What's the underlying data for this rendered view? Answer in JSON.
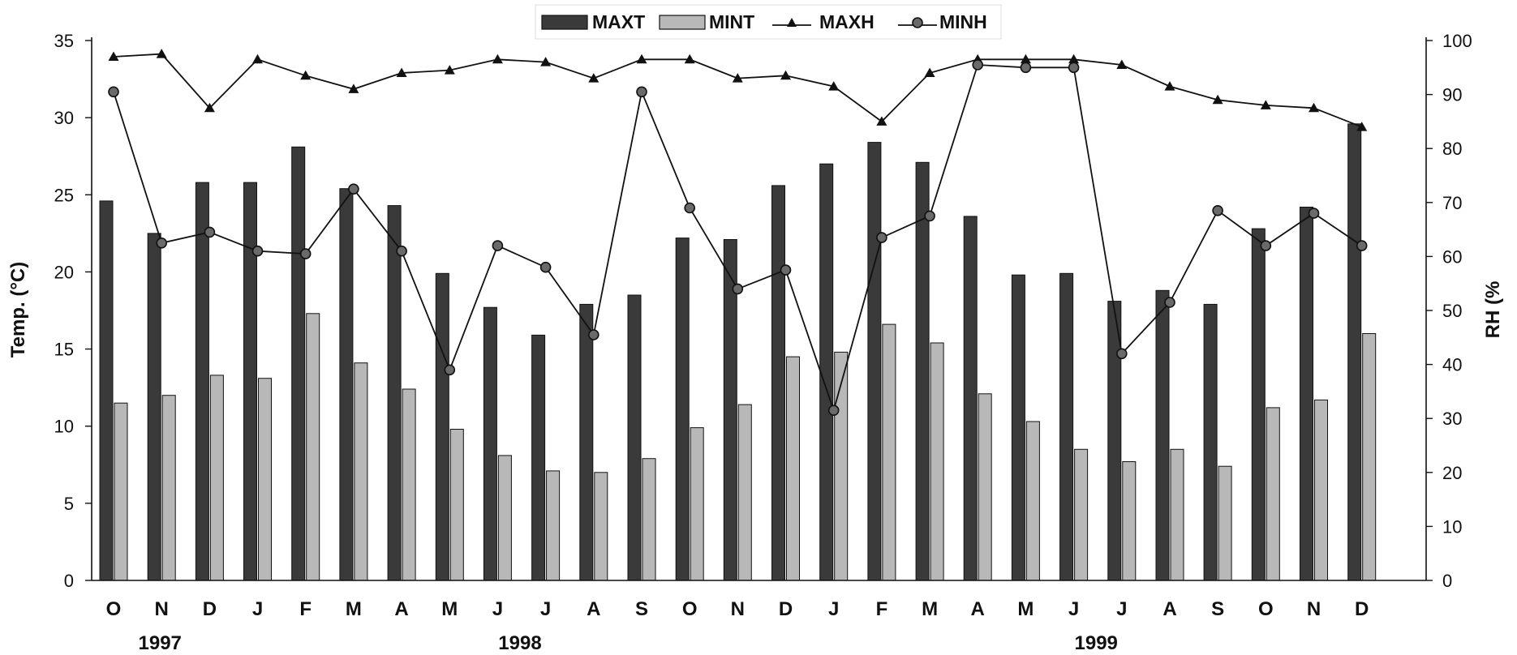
{
  "chart_data": {
    "type": "bar",
    "categories": [
      "O",
      "N",
      "D",
      "J",
      "F",
      "M",
      "A",
      "M",
      "J",
      "J",
      "A",
      "S",
      "O",
      "N",
      "D",
      "J",
      "F",
      "M",
      "A",
      "M",
      "J",
      "J",
      "A",
      "S",
      "O",
      "N",
      "D"
    ],
    "years": [
      {
        "label": "1997",
        "index": 1
      },
      {
        "label": "1998",
        "index": 8.5
      },
      {
        "label": "1999",
        "index": 20.5
      }
    ],
    "series": [
      {
        "name": "MAXT",
        "type": "bar",
        "axis": "left",
        "color": "#3a3a3a",
        "values": [
          24.6,
          22.5,
          25.8,
          25.8,
          28.1,
          25.4,
          24.3,
          19.9,
          17.7,
          15.9,
          17.9,
          18.5,
          22.2,
          22.1,
          25.6,
          27.0,
          28.4,
          27.1,
          23.6,
          19.8,
          19.9,
          18.1,
          18.8,
          17.9,
          22.8,
          24.2,
          29.6
        ]
      },
      {
        "name": "MINT",
        "type": "bar",
        "axis": "left",
        "color": "#b8b8b8",
        "values": [
          11.5,
          12.0,
          13.3,
          13.1,
          17.3,
          14.1,
          12.4,
          9.8,
          8.1,
          7.1,
          7.0,
          7.9,
          9.9,
          11.4,
          14.5,
          14.8,
          16.6,
          15.4,
          12.1,
          10.3,
          8.5,
          7.7,
          8.5,
          7.4,
          11.2,
          11.7,
          16.0
        ]
      },
      {
        "name": "MAXH",
        "type": "line",
        "marker": "triangle",
        "axis": "right",
        "color": "#111111",
        "values": [
          97,
          97.5,
          87.5,
          96.5,
          93.5,
          91,
          94,
          94.5,
          96.5,
          96,
          93,
          96.5,
          96.5,
          93,
          93.5,
          91.5,
          85,
          94,
          96.5,
          96.5,
          96.5,
          95.5,
          91.5,
          89,
          88,
          87.5,
          84
        ]
      },
      {
        "name": "MINH",
        "type": "line",
        "marker": "circle",
        "axis": "right",
        "color": "#111111",
        "values": [
          90.5,
          62.5,
          64.5,
          61,
          60.5,
          72.5,
          61,
          39,
          62,
          58,
          45.5,
          90.5,
          69,
          54,
          57.5,
          31.5,
          63.5,
          67.5,
          95.5,
          95,
          95,
          42,
          51.5,
          68.5,
          62,
          68,
          62
        ]
      }
    ],
    "ylabel": "Temp. (°C)",
    "y2label": "RH (%",
    "ylim": [
      0,
      35
    ],
    "y2lim": [
      0,
      100
    ],
    "yticks": [
      "0",
      "5",
      "10",
      "15",
      "20",
      "25",
      "30",
      "35"
    ],
    "y2ticks": [
      "0",
      "10",
      "20",
      "30",
      "40",
      "50",
      "60",
      "70",
      "80",
      "90",
      "100"
    ],
    "legend_position": "top-center",
    "grid": false
  }
}
